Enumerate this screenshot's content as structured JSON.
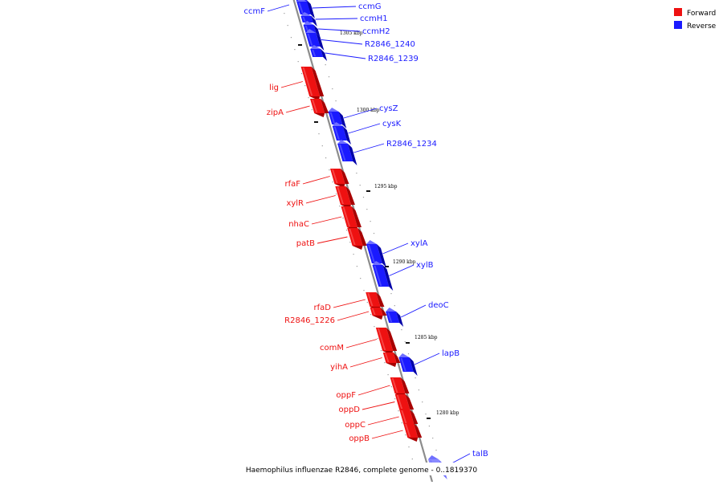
{
  "colors": {
    "forward": "#ee1111",
    "forward_dark": "#a80000",
    "forward_light": "#ff7070",
    "reverse": "#1a1aff",
    "reverse_dark": "#0000a8",
    "reverse_light": "#7070ff",
    "reverse_faint": "#8a8aff",
    "axis": "#8c8c8c"
  },
  "legend": {
    "forward": "Forward",
    "reverse": "Reverse"
  },
  "caption": "Haemophilus influenzae R2846, complete genome - 0..1819370",
  "kbp_markers": [
    "1305 kbp",
    "1300 kbp",
    "1295 kbp",
    "1290 kbp",
    "1285 kbp",
    "1280 kbp"
  ],
  "genes": [
    {
      "name": "ccmF",
      "strand": "reverse"
    },
    {
      "name": "ccmG",
      "strand": "reverse"
    },
    {
      "name": "ccmH1",
      "strand": "reverse"
    },
    {
      "name": "ccmH2",
      "strand": "reverse"
    },
    {
      "name": "R2846_1240",
      "strand": "reverse"
    },
    {
      "name": "R2846_1239",
      "strand": "reverse"
    },
    {
      "name": "lig",
      "strand": "forward"
    },
    {
      "name": "zipA",
      "strand": "forward"
    },
    {
      "name": "cysZ",
      "strand": "reverse"
    },
    {
      "name": "cysK",
      "strand": "reverse"
    },
    {
      "name": "R2846_1234",
      "strand": "reverse"
    },
    {
      "name": "rfaF",
      "strand": "forward"
    },
    {
      "name": "xylR",
      "strand": "forward"
    },
    {
      "name": "nhaC",
      "strand": "forward"
    },
    {
      "name": "patB",
      "strand": "forward"
    },
    {
      "name": "xylA",
      "strand": "reverse"
    },
    {
      "name": "xylB",
      "strand": "reverse"
    },
    {
      "name": "rfaD",
      "strand": "forward"
    },
    {
      "name": "R2846_1226",
      "strand": "forward"
    },
    {
      "name": "deoC",
      "strand": "reverse"
    },
    {
      "name": "comM",
      "strand": "forward"
    },
    {
      "name": "yihA",
      "strand": "forward"
    },
    {
      "name": "lapB",
      "strand": "reverse"
    },
    {
      "name": "oppF",
      "strand": "forward"
    },
    {
      "name": "oppD",
      "strand": "forward"
    },
    {
      "name": "oppC",
      "strand": "forward"
    },
    {
      "name": "oppB",
      "strand": "forward"
    },
    {
      "name": "talB",
      "strand": "reverse"
    }
  ]
}
